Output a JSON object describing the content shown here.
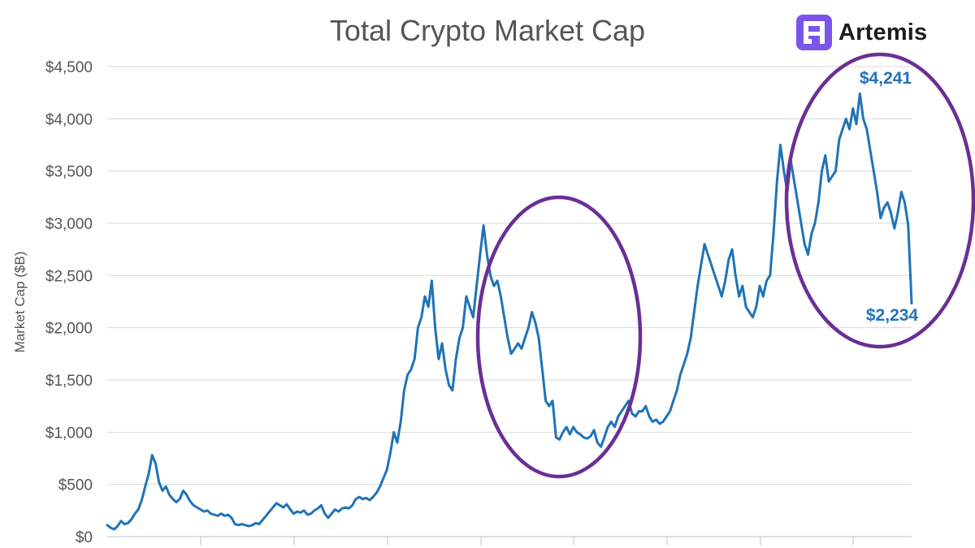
{
  "brand": {
    "name": "Artemis",
    "icon": "artemis-logo-icon",
    "color": "#7b54ea"
  },
  "colors": {
    "line": "#1f73b8",
    "circle": "#6a2f95",
    "callout": "#1f73b8",
    "grid": "#d9d9d9",
    "axis_text": "#555555",
    "title_text": "#555555"
  },
  "chart_data": {
    "type": "line",
    "title": "Total Crypto Market Cap",
    "xlabel": "",
    "ylabel": "Market Cap ($B)",
    "ylim": [
      0,
      4500
    ],
    "y_ticks": [
      "$0",
      "$500",
      "$1,000",
      "$1,500",
      "$2,000",
      "$2,500",
      "$3,000",
      "$3,500",
      "$4,000",
      "$4,500"
    ],
    "y_tick_values": [
      0,
      500,
      1000,
      1500,
      2000,
      2500,
      3000,
      3500,
      4000,
      4500
    ],
    "x_label_visible": false,
    "grid": "horizontal",
    "series": [
      {
        "values": [
          110,
          85,
          70,
          100,
          150,
          120,
          130,
          165,
          220,
          260,
          350,
          480,
          600,
          780,
          700,
          520,
          440,
          480,
          400,
          360,
          330,
          360,
          440,
          400,
          340,
          300,
          280,
          260,
          240,
          250,
          220,
          210,
          200,
          220,
          200,
          210,
          180,
          120,
          110,
          120,
          110,
          100,
          110,
          130,
          120,
          160,
          200,
          240,
          280,
          320,
          300,
          280,
          310,
          260,
          220,
          240,
          230,
          250,
          210,
          220,
          250,
          270,
          300,
          220,
          180,
          220,
          260,
          240,
          270,
          280,
          270,
          300,
          360,
          380,
          360,
          370,
          350,
          380,
          420,
          480,
          560,
          640,
          800,
          1000,
          900,
          1100,
          1400,
          1550,
          1600,
          1700,
          2000,
          2100,
          2300,
          2200,
          2450,
          2000,
          1700,
          1850,
          1600,
          1450,
          1400,
          1700,
          1900,
          2000,
          2300,
          2200,
          2100,
          2400,
          2700,
          2980,
          2700,
          2500,
          2400,
          2450,
          2300,
          2100,
          1900,
          1750,
          1800,
          1850,
          1800,
          1900,
          2000,
          2150,
          2050,
          1900,
          1600,
          1300,
          1250,
          1300,
          950,
          930,
          1000,
          1050,
          980,
          1050,
          1000,
          980,
          950,
          940,
          960,
          1020,
          900,
          860,
          950,
          1050,
          1100,
          1050,
          1150,
          1200,
          1250,
          1300,
          1180,
          1150,
          1200,
          1200,
          1250,
          1150,
          1100,
          1120,
          1080,
          1100,
          1150,
          1200,
          1300,
          1400,
          1550,
          1650,
          1750,
          1900,
          2150,
          2400,
          2600,
          2800,
          2700,
          2600,
          2500,
          2400,
          2300,
          2450,
          2650,
          2750,
          2500,
          2300,
          2400,
          2200,
          2150,
          2100,
          2200,
          2400,
          2300,
          2450,
          2500,
          2900,
          3400,
          3750,
          3500,
          3300,
          3600,
          3400,
          3200,
          3000,
          2800,
          2700,
          2900,
          3000,
          3200,
          3500,
          3650,
          3400,
          3450,
          3500,
          3800,
          3900,
          4000,
          3900,
          4100,
          3950,
          4241,
          4000,
          3900,
          3700,
          3500,
          3300,
          3050,
          3150,
          3200,
          3100,
          2950,
          3100,
          3300,
          3200,
          2980,
          2234
        ]
      }
    ],
    "annotations": [
      {
        "text": "$4,241",
        "value": 4241
      },
      {
        "text": "$2,234",
        "value": 2234
      }
    ]
  }
}
